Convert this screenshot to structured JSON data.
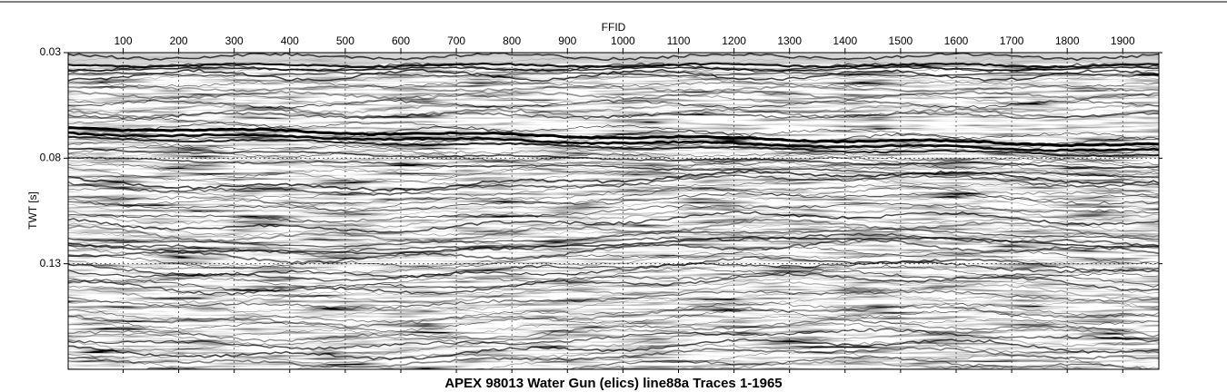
{
  "chart_data": {
    "type": "seismic",
    "title": "APEX 98013 Water Gun (elics) line88a Traces 1-1965",
    "x_label": "FFID",
    "y_label": "TWT [s]",
    "xlim": [
      1,
      1965
    ],
    "xticks": [
      100,
      200,
      300,
      400,
      500,
      600,
      700,
      800,
      900,
      1000,
      1100,
      1200,
      1300,
      1400,
      1500,
      1600,
      1700,
      1800,
      1900
    ],
    "ylim": [
      0.03,
      0.18
    ],
    "yticks": [
      0.03,
      0.08,
      0.13
    ],
    "y_inverted": true,
    "grid": true
  }
}
